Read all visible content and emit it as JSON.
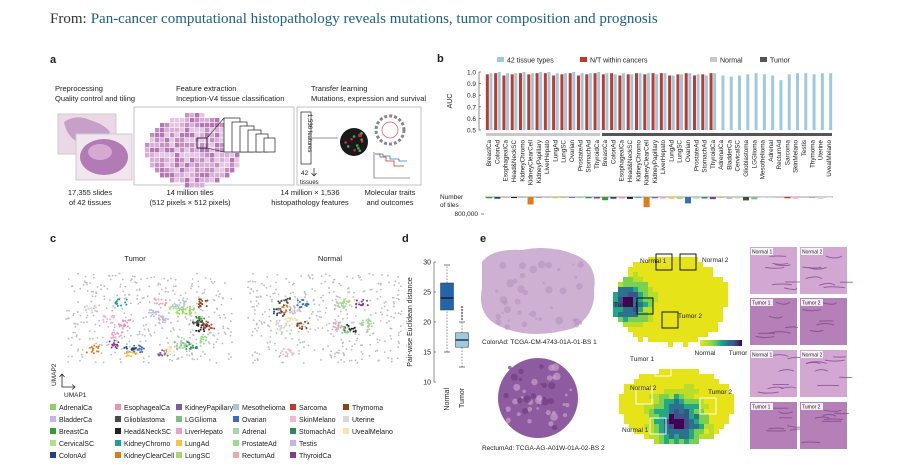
{
  "header": {
    "prefix": "From:",
    "title": "Pan-cancer computational histopathology reveals mutations, tumor composition and prognosis"
  },
  "panel_a": {
    "label": "a",
    "steps": [
      {
        "title": "Preprocessing",
        "subtitle": "Quality control and tiling",
        "caption": [
          "17,355 slides",
          "of 42 tissues"
        ]
      },
      {
        "title": "Feature extraction",
        "subtitle": "Inception-V4 tissue classification",
        "caption": [
          "14 million tiles",
          "(512 pixels × 512 pixels)"
        ]
      },
      {
        "title": "Transfer learning",
        "subtitle": "Mutations, expression and survival",
        "caption": [
          "14 million × 1,536",
          "histopathology features"
        ]
      }
    ],
    "outputs": [
      "Molecular traits",
      "and outcomes"
    ],
    "vector_label": "1,536 features",
    "classes_count": "42",
    "classes_label": "tissues"
  },
  "panel_b": {
    "label": "b",
    "chart": {
      "type": "bar",
      "y_label": "AUC",
      "ylim": [
        0.5,
        1.0
      ],
      "yticks": [
        {
          "value": 1.0,
          "label": "1.0"
        },
        0.9,
        0.8,
        0.7,
        0.6,
        0.5
      ],
      "groups": [
        {
          "name": "Normal",
          "color": "#c8c8c8",
          "categories": [
            "BreastCa",
            "ColonAd",
            "EsophagealCa",
            "Head&NeckSC",
            "KidneyChromo",
            "KidneyClearCell",
            "KidneyPapillary",
            "LiverHepato",
            "LungAd",
            "LungSC",
            "Ovarian",
            "ProstateAd",
            "StomachAd",
            "ThyroidCa"
          ]
        },
        {
          "name": "Tumor",
          "color": "#555555",
          "categories": [
            "BreastCa",
            "ColonAd",
            "EsophagealCa",
            "Head&NeckSC",
            "KidneyChromo",
            "KidneyClearCell",
            "KidneyPapillary",
            "LiverHepato",
            "LungAd",
            "LungSC",
            "Ovarian",
            "ProstateAd",
            "StomachAd",
            "ThyroidCa",
            "AdrenalCa",
            "BladderCa",
            "CervicalSC",
            "Glioblastoma",
            "LGGlioma",
            "Mesothelioma",
            "Adrenal",
            "RectumAd",
            "Sarcoma",
            "SkinMelano",
            "Testis",
            "Thymoma",
            "Uterine",
            "UvealMelano"
          ]
        }
      ],
      "series": [
        {
          "name": "42 tissue types",
          "color": "#9ecae1",
          "values": [
            0.99,
            1.0,
            0.99,
            0.99,
            1.0,
            0.99,
            1.0,
            1.0,
            0.99,
            0.99,
            1.0,
            0.99,
            0.99,
            1.0,
            0.99,
            0.98,
            0.99,
            0.98,
            0.99,
            0.99,
            0.98,
            0.99,
            0.97,
            0.98,
            0.99,
            0.98,
            0.97,
            0.99,
            0.97,
            0.96,
            0.97,
            0.98,
            0.99,
            0.98,
            0.97,
            0.93,
            0.98,
            0.99,
            0.99,
            0.98,
            0.99,
            0.99
          ]
        },
        {
          "name": "N/T within cancers",
          "color": "#c0392b",
          "values": [
            0.98,
            0.99,
            0.97,
            0.98,
            0.99,
            0.98,
            0.99,
            0.99,
            0.97,
            0.98,
            0.99,
            0.97,
            0.98,
            0.99,
            0.98,
            0.99,
            0.97,
            0.98,
            0.99,
            0.98,
            0.99,
            0.99,
            0.97,
            0.98,
            0.99,
            0.97,
            0.98,
            0.99,
            null,
            null,
            null,
            null,
            null,
            null,
            null,
            null,
            null,
            null,
            null,
            null,
            null,
            null
          ]
        }
      ],
      "tiles": {
        "label": [
          "Number",
          "of tiles"
        ],
        "ylim": [
          0,
          800000
        ],
        "yticks": [
          {
            "value": 800000,
            "label": "800,000"
          }
        ],
        "values": [
          60000,
          80000,
          40000,
          50000,
          20000,
          350000,
          30000,
          40000,
          60000,
          50000,
          40000,
          50000,
          60000,
          70000,
          150000,
          80000,
          70000,
          90000,
          40000,
          480000,
          60000,
          70000,
          80000,
          90000,
          300000,
          70000,
          70000,
          100000,
          40000,
          90000,
          60000,
          160000,
          110000,
          20000,
          30000,
          40000,
          60000,
          90000,
          40000,
          20000,
          100000,
          20000
        ]
      }
    }
  },
  "panel_c": {
    "label": "c",
    "titles": [
      "Tumor",
      "Normal"
    ],
    "axes": [
      "UMAP2",
      "UMAP1"
    ],
    "legend": [
      {
        "label": "AdrenalCa",
        "color": "#8dd35f"
      },
      {
        "label": "BladderCa",
        "color": "#c9b3e0"
      },
      {
        "label": "BreastCa",
        "color": "#33a02c"
      },
      {
        "label": "CervicalSC",
        "color": "#b2df8a"
      },
      {
        "label": "ColonAd",
        "color": "#1f3f8f"
      },
      {
        "label": "EsophagealCa",
        "color": "#f48fb1"
      },
      {
        "label": "Glioblastoma",
        "color": "#4a4a4a"
      },
      {
        "label": "Head&NeckSC",
        "color": "#222222"
      },
      {
        "label": "KidneyChromo",
        "color": "#1b9e9e"
      },
      {
        "label": "KidneyClearCell",
        "color": "#e07b1a"
      },
      {
        "label": "KidneyPapillary",
        "color": "#7b5ea7"
      },
      {
        "label": "LGGlioma",
        "color": "#7fbf7f"
      },
      {
        "label": "LiverHepato",
        "color": "#f0a0c8"
      },
      {
        "label": "LungAd",
        "color": "#f6c343"
      },
      {
        "label": "LungSC",
        "color": "#a6d96a"
      },
      {
        "label": "Mesothelioma",
        "color": "#aac8e6"
      },
      {
        "label": "Ovarian",
        "color": "#3a6fbf"
      },
      {
        "label": "Adrenal",
        "color": "#a5d6a7"
      },
      {
        "label": "ProstateAd",
        "color": "#98df8a"
      },
      {
        "label": "RectumAd",
        "color": "#f4a6a6"
      },
      {
        "label": "Sarcoma",
        "color": "#c0392b"
      },
      {
        "label": "SkinMelano",
        "color": "#f7b6d2"
      },
      {
        "label": "StomachAd",
        "color": "#2e8b57"
      },
      {
        "label": "Testis",
        "color": "#c6b7e0"
      },
      {
        "label": "ThyroidCa",
        "color": "#7d3c98"
      },
      {
        "label": "Thymoma",
        "color": "#8b4513"
      },
      {
        "label": "Uterine",
        "color": "#d9d9d9"
      },
      {
        "label": "UvealMelano",
        "color": "#fde3a7"
      }
    ]
  },
  "panel_d": {
    "label": "d",
    "chart": {
      "type": "box",
      "y_label": "Pair-wise Euclidean distance",
      "ylim": [
        10,
        30
      ],
      "yticks": [
        10,
        15,
        20,
        25,
        30
      ],
      "categories": [
        "Normal",
        "Tumor"
      ],
      "colors": [
        "#2166ac",
        "#9ecae1"
      ],
      "boxes": [
        {
          "min": 15,
          "q1": 22,
          "median": 24,
          "q3": 26.5,
          "max": 29.5
        },
        {
          "min": 12.5,
          "q1": 15.8,
          "median": 17,
          "q3": 18.2,
          "max": 20
        }
      ],
      "outliers": [
        [],
        [
          20.5,
          21,
          21.5,
          22,
          22.5
        ]
      ]
    }
  },
  "panel_e": {
    "label": "e",
    "colorbar": [
      "Normal",
      "Tumor"
    ],
    "slides": [
      {
        "caption": "ColonAd: TCGA-CM-4743-01A-01-BS 1",
        "regions": [
          "Normal 1",
          "Normal 2",
          "Tumor 1",
          "Tumor 2"
        ]
      },
      {
        "caption": "RectumAd: TCGA-AG-A01W-01A-02-BS 2",
        "regions": [
          "Normal 1",
          "Normal 2",
          "Tumor 1",
          "Tumor 2"
        ]
      }
    ]
  }
}
